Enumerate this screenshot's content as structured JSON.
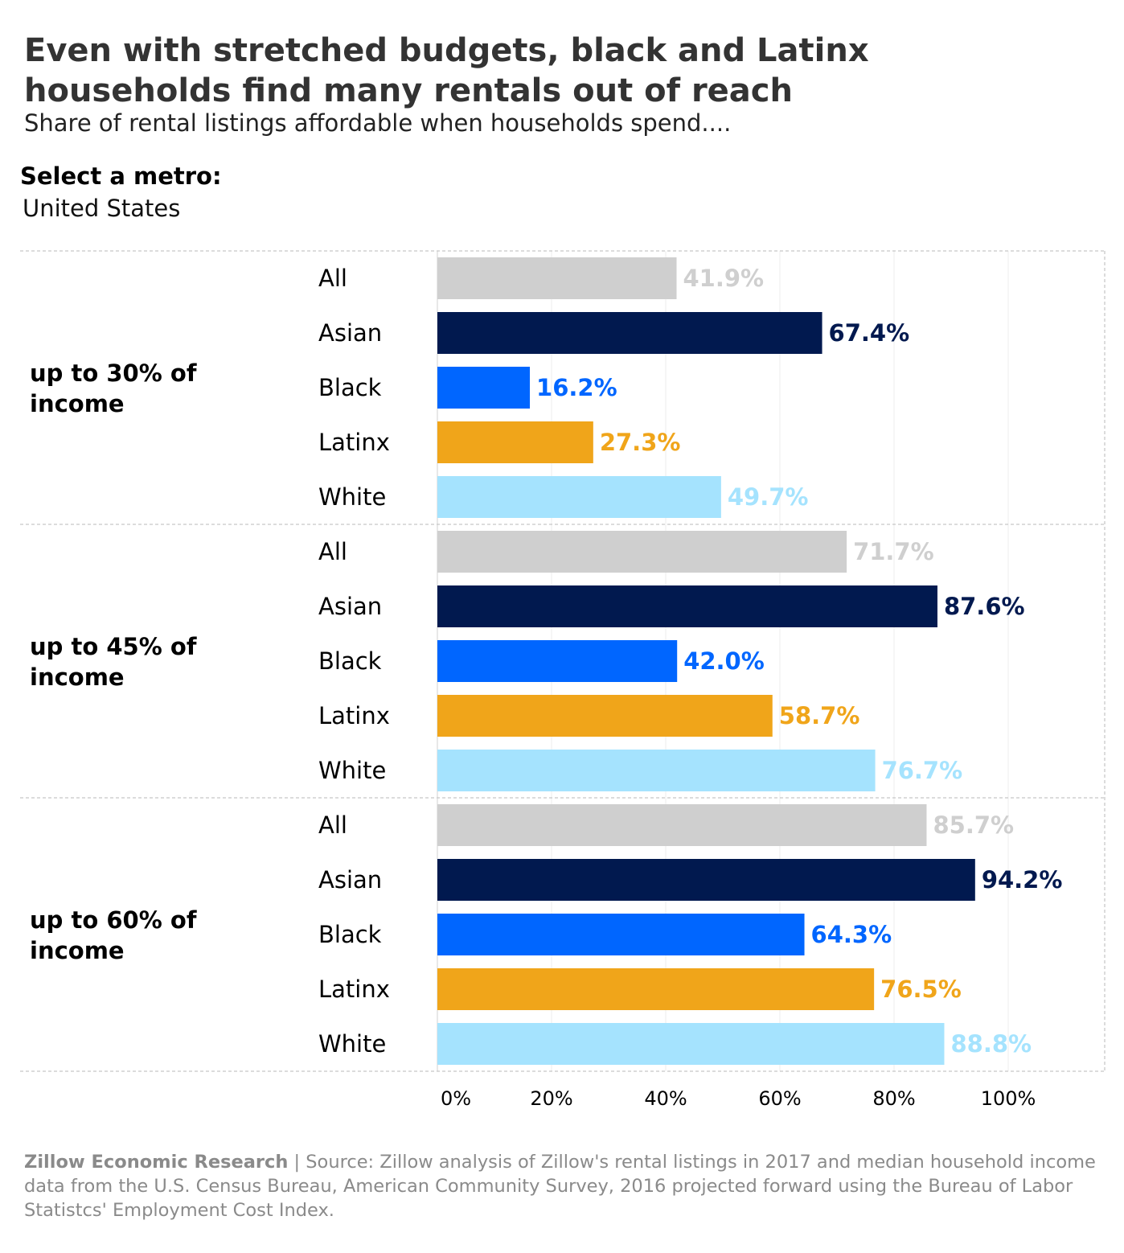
{
  "title": "Even with stretched budgets, black and Latinx households find many rentals out of reach",
  "subtitle": "Share of rental listings affordable when households spend....",
  "filter": {
    "label": "Select a metro:",
    "value": "United States"
  },
  "footer": {
    "org": "Zillow Economic Research",
    "separator": " | ",
    "source": "Source: Zillow analysis of Zillow's rental listings in 2017 and median household income data from the U.S. Census Bureau, American Community Survey, 2016 projected forward using the Bureau of Labor Statistcs' Employment Cost Index."
  },
  "chart_data": {
    "type": "bar",
    "orientation": "horizontal",
    "xlim": [
      0,
      100
    ],
    "xticks": [
      "0%",
      "20%",
      "40%",
      "60%",
      "80%",
      "100%"
    ],
    "grid": true,
    "colors": {
      "All": "#cfcfcf",
      "Asian": "#01194f",
      "Black": "#0066ff",
      "Latinx": "#f0a51a",
      "White": "#a5e3fe"
    },
    "groups": [
      {
        "label": "up to 30% of income",
        "bars": [
          {
            "category": "All",
            "value": 41.9,
            "label": "41.9%"
          },
          {
            "category": "Asian",
            "value": 67.4,
            "label": "67.4%"
          },
          {
            "category": "Black",
            "value": 16.2,
            "label": "16.2%"
          },
          {
            "category": "Latinx",
            "value": 27.3,
            "label": "27.3%"
          },
          {
            "category": "White",
            "value": 49.7,
            "label": "49.7%"
          }
        ]
      },
      {
        "label": "up to 45% of income",
        "bars": [
          {
            "category": "All",
            "value": 71.7,
            "label": "71.7%"
          },
          {
            "category": "Asian",
            "value": 87.6,
            "label": "87.6%"
          },
          {
            "category": "Black",
            "value": 42.0,
            "label": "42.0%"
          },
          {
            "category": "Latinx",
            "value": 58.7,
            "label": "58.7%"
          },
          {
            "category": "White",
            "value": 76.7,
            "label": "76.7%"
          }
        ]
      },
      {
        "label": "up to 60% of income",
        "bars": [
          {
            "category": "All",
            "value": 85.7,
            "label": "85.7%"
          },
          {
            "category": "Asian",
            "value": 94.2,
            "label": "94.2%"
          },
          {
            "category": "Black",
            "value": 64.3,
            "label": "64.3%"
          },
          {
            "category": "Latinx",
            "value": 76.5,
            "label": "76.5%"
          },
          {
            "category": "White",
            "value": 88.8,
            "label": "88.8%"
          }
        ]
      }
    ]
  }
}
